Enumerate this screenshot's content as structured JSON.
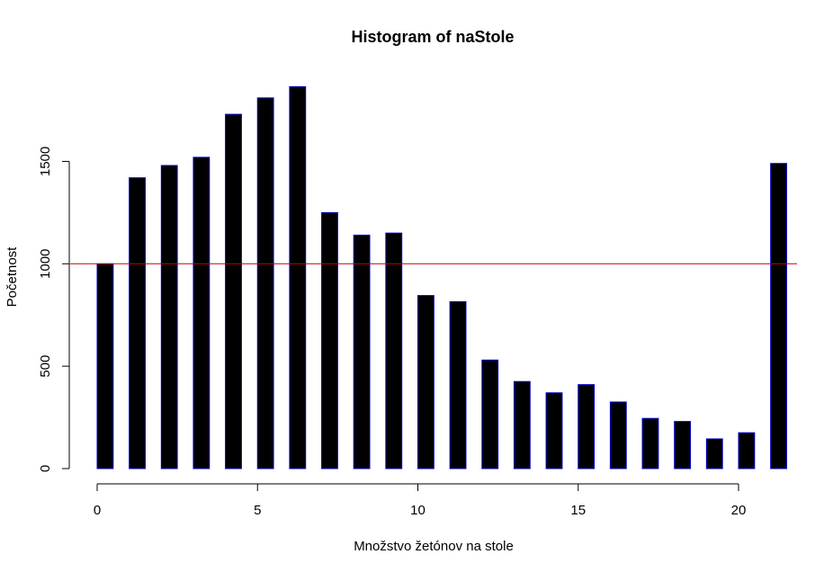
{
  "chart_data": {
    "type": "bar",
    "title": "Histogram of naStole",
    "xlabel": "Množstvo žetónov na stole",
    "ylabel": "Početnost",
    "x": [
      0,
      1,
      2,
      3,
      4,
      5,
      6,
      7,
      8,
      9,
      10,
      11,
      12,
      13,
      14,
      15,
      16,
      17,
      18,
      19,
      20,
      21
    ],
    "values": [
      1000,
      1420,
      1480,
      1520,
      1730,
      1810,
      1865,
      1250,
      1140,
      1150,
      845,
      815,
      530,
      425,
      370,
      410,
      325,
      245,
      230,
      145,
      175,
      1490
    ],
    "xlim": [
      0,
      22
    ],
    "ylim": [
      0,
      1900
    ],
    "xticks": [
      "0",
      "5",
      "10",
      "15",
      "20"
    ],
    "yticks": [
      "0",
      "500",
      "1000",
      "1500"
    ],
    "reference_line": {
      "y": 1000,
      "color": "#cc0000"
    },
    "bar_fill": "#000000",
    "bar_border": "#0000cc",
    "grid": false,
    "legend": "none"
  }
}
